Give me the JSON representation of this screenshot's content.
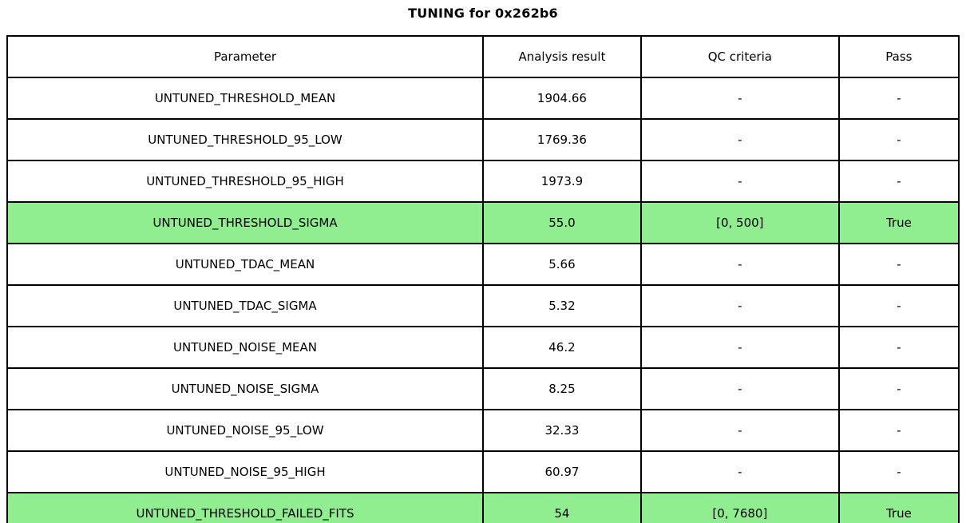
{
  "title": "TUNING for 0x262b6",
  "table": {
    "headers": [
      "Parameter",
      "Analysis result",
      "QC criteria",
      "Pass"
    ],
    "highlight_color": "#90EE90",
    "rows": [
      {
        "parameter": "UNTUNED_THRESHOLD_MEAN",
        "result": "1904.66",
        "qc": "-",
        "pass": "-",
        "highlight": false
      },
      {
        "parameter": "UNTUNED_THRESHOLD_95_LOW",
        "result": "1769.36",
        "qc": "-",
        "pass": "-",
        "highlight": false
      },
      {
        "parameter": "UNTUNED_THRESHOLD_95_HIGH",
        "result": "1973.9",
        "qc": "-",
        "pass": "-",
        "highlight": false
      },
      {
        "parameter": "UNTUNED_THRESHOLD_SIGMA",
        "result": "55.0",
        "qc": "[0, 500]",
        "pass": "True",
        "highlight": true
      },
      {
        "parameter": "UNTUNED_TDAC_MEAN",
        "result": "5.66",
        "qc": "-",
        "pass": "-",
        "highlight": false
      },
      {
        "parameter": "UNTUNED_TDAC_SIGMA",
        "result": "5.32",
        "qc": "-",
        "pass": "-",
        "highlight": false
      },
      {
        "parameter": "UNTUNED_NOISE_MEAN",
        "result": "46.2",
        "qc": "-",
        "pass": "-",
        "highlight": false
      },
      {
        "parameter": "UNTUNED_NOISE_SIGMA",
        "result": "8.25",
        "qc": "-",
        "pass": "-",
        "highlight": false
      },
      {
        "parameter": "UNTUNED_NOISE_95_LOW",
        "result": "32.33",
        "qc": "-",
        "pass": "-",
        "highlight": false
      },
      {
        "parameter": "UNTUNED_NOISE_95_HIGH",
        "result": "60.97",
        "qc": "-",
        "pass": "-",
        "highlight": false
      },
      {
        "parameter": "UNTUNED_THRESHOLD_FAILED_FITS",
        "result": "54",
        "qc": "[0, 7680]",
        "pass": "True",
        "highlight": true
      }
    ]
  },
  "chart_data": {
    "type": "table",
    "title": "TUNING for 0x262b6",
    "columns": [
      "Parameter",
      "Analysis result",
      "QC criteria",
      "Pass"
    ],
    "rows": [
      [
        "UNTUNED_THRESHOLD_MEAN",
        1904.66,
        "-",
        "-"
      ],
      [
        "UNTUNED_THRESHOLD_95_LOW",
        1769.36,
        "-",
        "-"
      ],
      [
        "UNTUNED_THRESHOLD_95_HIGH",
        1973.9,
        "-",
        "-"
      ],
      [
        "UNTUNED_THRESHOLD_SIGMA",
        55.0,
        "[0, 500]",
        "True"
      ],
      [
        "UNTUNED_TDAC_MEAN",
        5.66,
        "-",
        "-"
      ],
      [
        "UNTUNED_TDAC_SIGMA",
        5.32,
        "-",
        "-"
      ],
      [
        "UNTUNED_NOISE_MEAN",
        46.2,
        "-",
        "-"
      ],
      [
        "UNTUNED_NOISE_SIGMA",
        8.25,
        "-",
        "-"
      ],
      [
        "UNTUNED_NOISE_95_LOW",
        32.33,
        "-",
        "-"
      ],
      [
        "UNTUNED_NOISE_95_HIGH",
        60.97,
        "-",
        "-"
      ],
      [
        "UNTUNED_THRESHOLD_FAILED_FITS",
        54,
        "[0, 7680]",
        "True"
      ]
    ],
    "highlighted_rows": [
      "UNTUNED_THRESHOLD_SIGMA",
      "UNTUNED_THRESHOLD_FAILED_FITS"
    ],
    "highlight_color": "#90EE90",
    "layout": {
      "grid": true,
      "cell_text_align": "center",
      "title_position": "top-center"
    }
  }
}
